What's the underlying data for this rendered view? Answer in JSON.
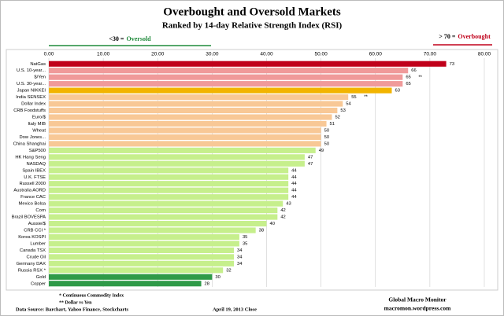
{
  "chart_data": {
    "type": "bar",
    "orientation": "horizontal",
    "title": "Overbought and Oversold Markets",
    "subtitle": "Ranked by 14-day Relative Strength Index (RSI)",
    "oversold_label": [
      "<30 =",
      "Oversold"
    ],
    "overbought_label": [
      "> 70 =",
      "Overbought"
    ],
    "categories": [
      "NatGas",
      "U.S. 10-year...",
      "$/Yen",
      "U.S. 30-year...",
      "Japan NIKKEI",
      "India SENSEX",
      "Dollar Index",
      "CRB Foodstuffs",
      "Euro/$",
      "Italy  MIB",
      "Wheat",
      "Dow Jones...",
      "China Shanghai",
      "S&P500",
      "HK  Hang Seng",
      "NASDAQ",
      "Spain IBEX",
      "U.K. FTSE",
      "Russell 2000",
      "Australia AORD",
      "France CAC",
      "Mexico Bolsa",
      "Corn",
      "Brazil BOVESPA",
      "Aussie/$",
      "CRB CCI *",
      "Korea KOSPI",
      "Lumber",
      "Canada TSX",
      "Crude Oil",
      "Germany DAX",
      "Russia RSX *",
      "Gold",
      "Copper"
    ],
    "values": [
      73,
      66,
      65,
      65,
      63,
      55,
      54,
      53,
      52,
      51,
      50,
      50,
      50,
      49,
      47,
      47,
      44,
      44,
      44,
      44,
      44,
      43,
      42,
      42,
      40,
      38,
      35,
      35,
      34,
      34,
      34,
      32,
      30,
      28
    ],
    "colors": [
      "#c0001a",
      "#f09a9a",
      "#f09a9a",
      "#f09a9a",
      "#f2b400",
      "#f8c896",
      "#f8c896",
      "#f8c896",
      "#f8c896",
      "#f8c896",
      "#f8c896",
      "#f8c896",
      "#f8c896",
      "#c6ef8c",
      "#c6ef8c",
      "#c6ef8c",
      "#c6ef8c",
      "#c6ef8c",
      "#c6ef8c",
      "#c6ef8c",
      "#c6ef8c",
      "#c6ef8c",
      "#c6ef8c",
      "#c6ef8c",
      "#c6ef8c",
      "#c6ef8c",
      "#c6ef8c",
      "#c6ef8c",
      "#c6ef8c",
      "#c6ef8c",
      "#c6ef8c",
      "#c6ef8c",
      "#2f9a48",
      "#2f9a48"
    ],
    "bar_notes": [
      null,
      null,
      "**",
      null,
      null,
      "**",
      null,
      null,
      null,
      null,
      null,
      null,
      null,
      null,
      null,
      null,
      null,
      null,
      null,
      null,
      null,
      null,
      null,
      null,
      null,
      null,
      null,
      null,
      null,
      null,
      null,
      null,
      null,
      null
    ],
    "xlim": [
      0,
      80
    ],
    "xticks": [
      {
        "value": 0,
        "label": "0.00"
      },
      {
        "value": 10,
        "label": "10.00"
      },
      {
        "value": 20,
        "label": "20.00"
      },
      {
        "value": 30,
        "label": "30.00"
      },
      {
        "value": 40,
        "label": "40.00"
      },
      {
        "value": 50,
        "label": "50.00"
      },
      {
        "value": 60,
        "label": "60.00"
      },
      {
        "value": 70,
        "label": "70.00"
      },
      {
        "value": 80,
        "label": "80.00"
      }
    ],
    "grid": true,
    "footnotes": [
      "* Continuous Commodity Index",
      "** Dollar vs Yen"
    ],
    "source": "Data Source:  Barchart,  Yahoo Finance, Stockcharts",
    "date": "April 19, 2013  Close",
    "brand": "Global Macro Monitor",
    "website": "macromon.wordpress.com"
  }
}
